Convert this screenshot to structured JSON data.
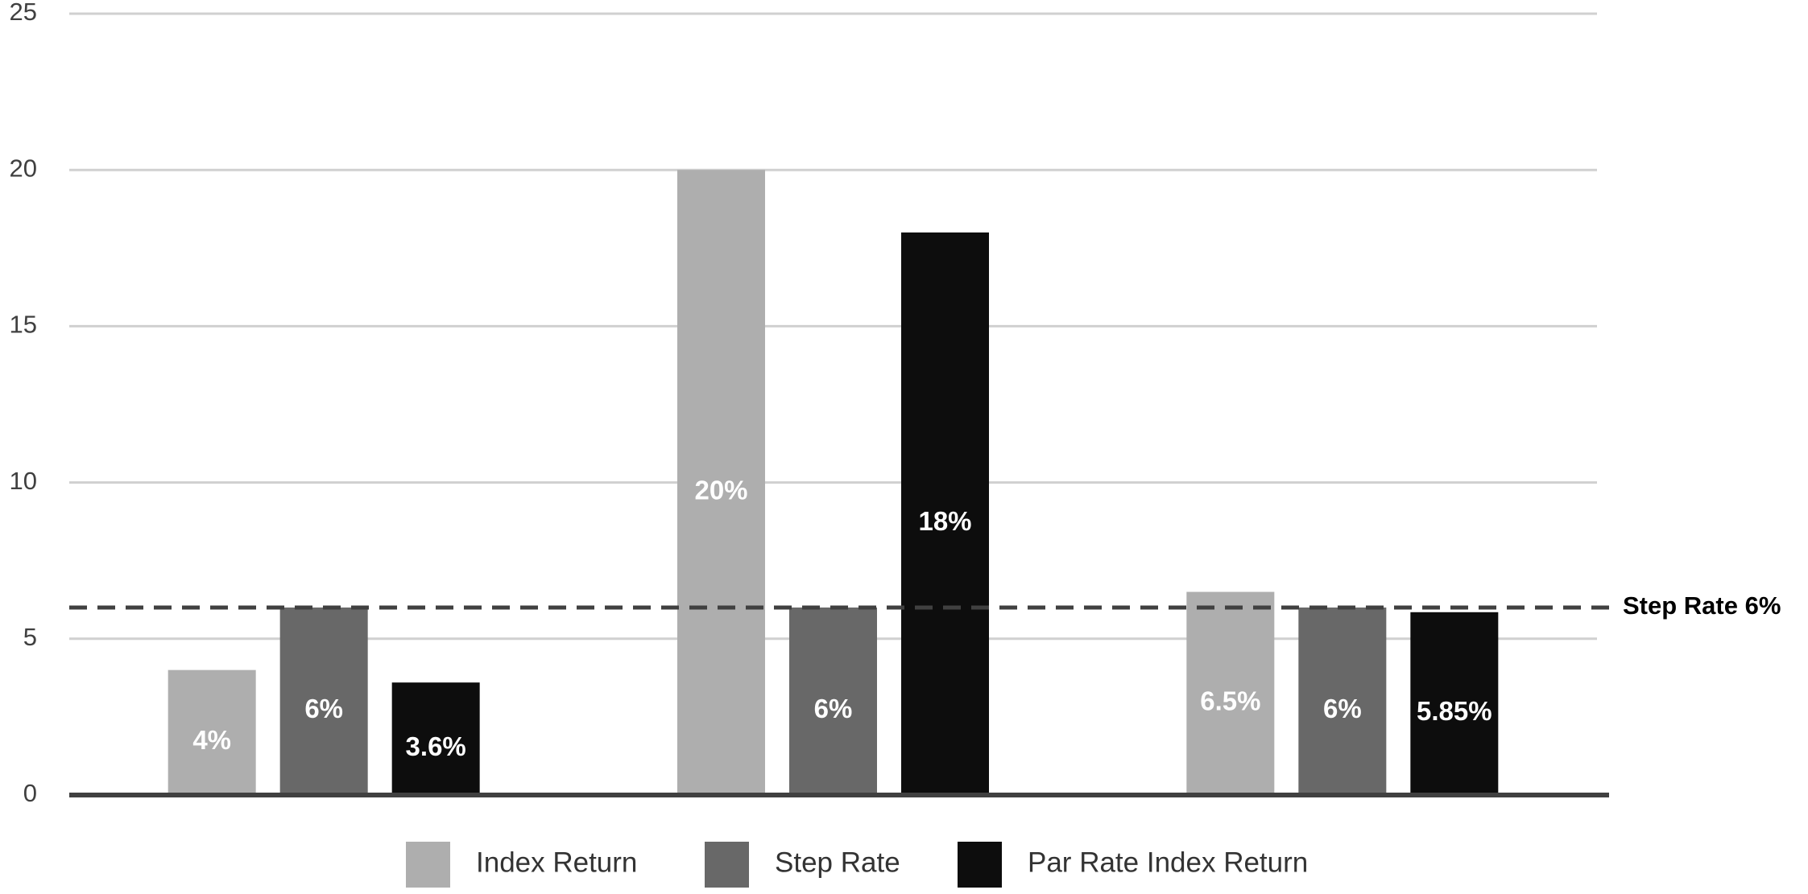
{
  "chart_data": {
    "type": "bar",
    "categories": [
      null,
      null,
      null
    ],
    "series": [
      {
        "name": "Index Return",
        "color": "#aeaeae",
        "values": [
          4,
          20,
          6.5
        ],
        "value_labels": [
          "4%",
          "20%",
          "6.5%"
        ]
      },
      {
        "name": "Step Rate",
        "color": "#686868",
        "values": [
          6,
          6,
          6
        ],
        "value_labels": [
          "6%",
          "6%",
          "6%"
        ]
      },
      {
        "name": "Par Rate Index Return",
        "color": "#0d0d0d",
        "values": [
          3.6,
          18,
          5.85
        ],
        "value_labels": [
          "3.6%",
          "18%",
          "5.85%"
        ]
      }
    ],
    "ylim": [
      0,
      25
    ],
    "yticks": [
      0,
      5,
      10,
      15,
      20,
      25
    ],
    "grid": true,
    "reference_lines": [
      {
        "value": 6,
        "label": "Step Rate 6%",
        "color": "#404040"
      }
    ],
    "legend": "bottom"
  }
}
